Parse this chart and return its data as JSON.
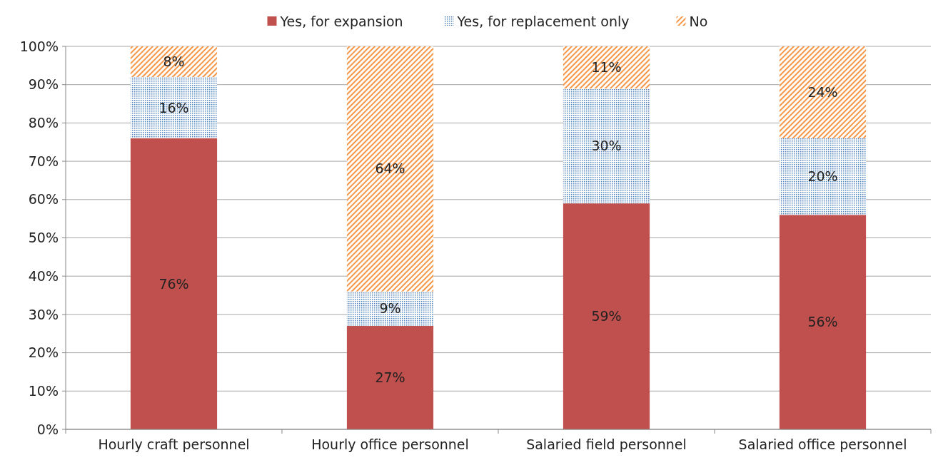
{
  "chart_data": {
    "type": "bar",
    "stacked": true,
    "categories": [
      "Hourly craft personnel",
      "Hourly office personnel",
      "Salaried field personnel",
      "Salaried office personnel"
    ],
    "series": [
      {
        "name": "Yes, for expansion",
        "color": "#c0504d",
        "values": [
          76,
          27,
          59,
          56
        ],
        "value_labels": [
          "76%",
          "27%",
          "59%",
          "56%"
        ]
      },
      {
        "name": "Yes, for replacement only",
        "color": "#4f81bd",
        "values": [
          16,
          9,
          30,
          20
        ],
        "value_labels": [
          "16%",
          "9%",
          "30%",
          "20%"
        ]
      },
      {
        "name": "No",
        "color": "#f79646",
        "values": [
          8,
          64,
          11,
          24
        ],
        "value_labels": [
          "8%",
          "64%",
          "11%",
          "24%"
        ]
      }
    ],
    "ylim": [
      0,
      100
    ],
    "yticks": [
      {
        "value": 0,
        "label": "0%"
      },
      {
        "value": 10,
        "label": "10%"
      },
      {
        "value": 20,
        "label": "20%"
      },
      {
        "value": 30,
        "label": "30%"
      },
      {
        "value": 40,
        "label": "40%"
      },
      {
        "value": 50,
        "label": "50%"
      },
      {
        "value": 60,
        "label": "60%"
      },
      {
        "value": 70,
        "label": "70%"
      },
      {
        "value": 80,
        "label": "80%"
      },
      {
        "value": 90,
        "label": "90%"
      },
      {
        "value": 100,
        "label": "100%"
      }
    ],
    "grid": "y",
    "legend": "top"
  }
}
